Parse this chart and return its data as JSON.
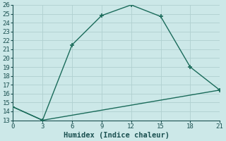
{
  "xlabel": "Humidex (Indice chaleur)",
  "background_color": "#cce8e8",
  "line_color": "#1a6b5a",
  "line1_x": [
    0,
    3,
    6,
    9,
    12,
    15,
    18,
    21
  ],
  "line1_y": [
    14.5,
    13.0,
    21.5,
    24.8,
    26.0,
    24.7,
    19.0,
    16.4
  ],
  "line2_x": [
    0,
    3,
    21
  ],
  "line2_y": [
    14.5,
    13.0,
    16.4
  ],
  "xlim": [
    0,
    21
  ],
  "ylim": [
    13,
    26
  ],
  "xticks": [
    0,
    3,
    6,
    9,
    12,
    15,
    18,
    21
  ],
  "yticks": [
    13,
    14,
    15,
    16,
    17,
    18,
    19,
    20,
    21,
    22,
    23,
    24,
    25,
    26
  ],
  "grid_color": "#b0d0d0",
  "marker": "+",
  "markersize": 5,
  "linewidth": 1.0,
  "tick_fontsize": 6.5,
  "xlabel_fontsize": 7.5
}
